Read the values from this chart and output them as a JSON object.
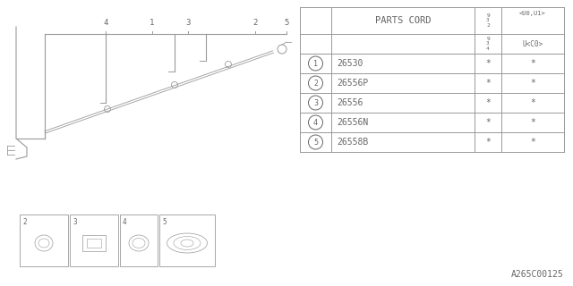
{
  "bg_color": "#ffffff",
  "line_color": "#999999",
  "text_color": "#666666",
  "table_border_color": "#999999",
  "watermark": "A265C00125",
  "table": {
    "rows": [
      [
        "1",
        "26530",
        "*",
        "*"
      ],
      [
        "2",
        "26556P",
        "*",
        "*"
      ],
      [
        "3",
        "26556",
        "*",
        "*"
      ],
      [
        "4",
        "26556N",
        "*",
        "*"
      ],
      [
        "5",
        "26558B",
        "*",
        "*"
      ]
    ]
  },
  "font_size_table": 7,
  "font_size_label": 7,
  "font_size_watermark": 7
}
